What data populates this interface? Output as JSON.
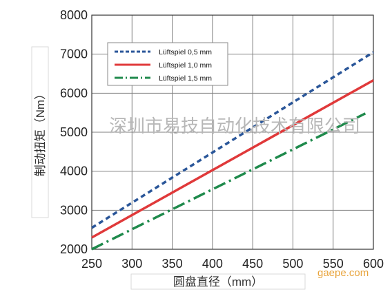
{
  "chart_data": {
    "type": "line",
    "title": "",
    "xlabel": "圆盘直径（mm）",
    "ylabel": "制动扭矩（Nm）",
    "xlim": [
      250,
      600
    ],
    "ylim": [
      2000,
      8000
    ],
    "x_ticks": [
      "250",
      "300",
      "350",
      "400",
      "450",
      "500",
      "550",
      "600"
    ],
    "y_ticks": [
      "2000",
      "3000",
      "4000",
      "5000",
      "6000",
      "7000",
      "8000"
    ],
    "grid": true,
    "legend_position": "top-left",
    "series": [
      {
        "name": "Lüftspiel 0,5 mm",
        "color": "#2a5699",
        "style": "dashed",
        "x": [
          250,
          600
        ],
        "y": [
          2550,
          7050
        ]
      },
      {
        "name": "Lüftspiel 1,0 mm",
        "color": "#e0393a",
        "style": "solid",
        "x": [
          250,
          600
        ],
        "y": [
          2300,
          6330
        ]
      },
      {
        "name": "Lüftspiel 1,5 mm",
        "color": "#1f8a4c",
        "style": "dash-dot",
        "x": [
          250,
          590
        ],
        "y": [
          2000,
          5480
        ]
      }
    ]
  },
  "watermark": "深圳市易技自动化技术有限公司",
  "brand": "gaepe.com"
}
